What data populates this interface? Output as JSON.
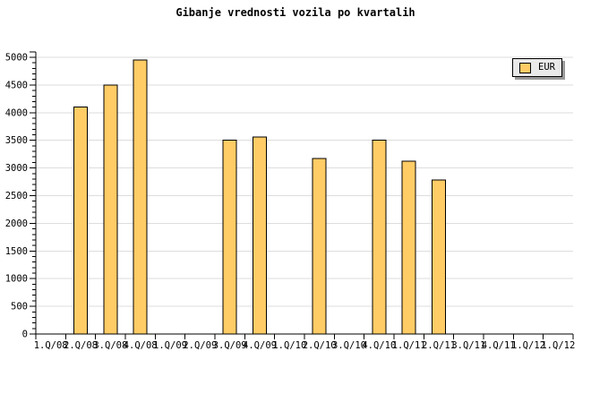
{
  "title": "Gibanje vrednosti vozila po kvartalih",
  "legend": {
    "label": "EUR",
    "position": "top-right"
  },
  "colors": {
    "bar_fill": "#FFCC66",
    "bar_border": "#000000",
    "grid": "#DDDDDD",
    "axis": "#000000",
    "text": "#000000",
    "legend_bg": "#E9E9E9",
    "legend_shadow": "#999999",
    "background": "#FFFFFF"
  },
  "chart_data": {
    "type": "bar",
    "title": "Gibanje vrednosti vozila po kvartalih",
    "categories": [
      "1.Q/08",
      "2.Q/08",
      "3.Q/08",
      "4.Q/08",
      "1.Q/09",
      "2.Q/09",
      "3.Q/09",
      "4.Q/09",
      "1.Q/10",
      "2.Q/10",
      "3.Q/10",
      "4.Q/10",
      "1.Q/11",
      "2.Q/11",
      "3.Q/11",
      "4.Q/11",
      "1.Q/12",
      "1.Q/12"
    ],
    "series": [
      {
        "name": "EUR",
        "values": [
          null,
          4100,
          4500,
          4950,
          null,
          null,
          3500,
          3560,
          null,
          3170,
          null,
          3500,
          3120,
          2780,
          null,
          null,
          null,
          null
        ]
      }
    ],
    "xlabel": "",
    "ylabel": "",
    "ylim": [
      0,
      5000
    ],
    "ytick_major": 500,
    "ytick_minor": 100,
    "yticks": [
      0,
      500,
      1000,
      1500,
      2000,
      2500,
      3000,
      3500,
      4000,
      4500,
      5000
    ],
    "grid": true,
    "legend_position": "top-right"
  }
}
